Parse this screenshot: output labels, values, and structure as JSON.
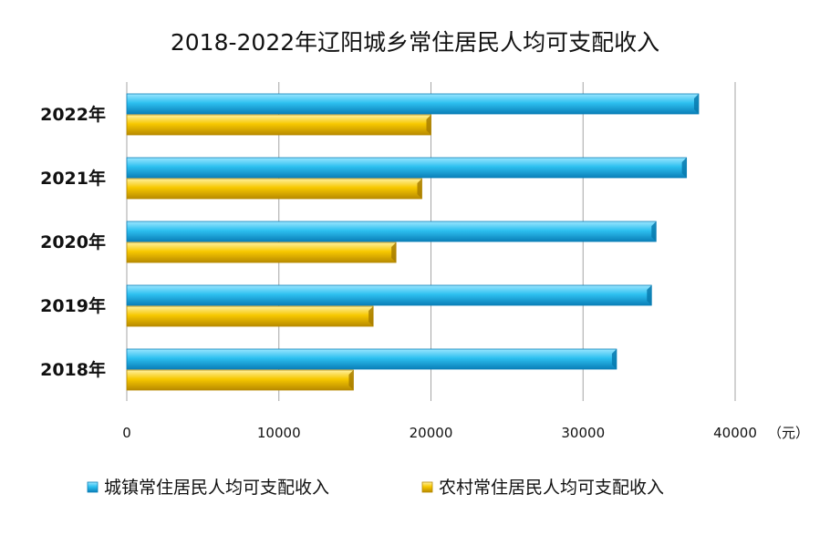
{
  "chart_data": {
    "type": "bar",
    "orientation": "horizontal",
    "title": "2018-2022年辽阳城乡常住居民人均可支配收入",
    "categories": [
      "2022年",
      "2021年",
      "2020年",
      "2019年",
      "2018年"
    ],
    "series": [
      {
        "name": "城镇常住居民人均可支配收入",
        "color": "#1EB4E6",
        "values": [
          37600,
          36800,
          34800,
          34500,
          32200
        ]
      },
      {
        "name": "农村常住居民人均可支配收入",
        "color": "#F5C400",
        "values": [
          20000,
          19400,
          17700,
          16200,
          14900
        ]
      }
    ],
    "x_ticks": [
      "0",
      "10000",
      "20000",
      "30000",
      "40000"
    ],
    "xlim": [
      0,
      40000
    ],
    "unit": "（元）",
    "grid": true,
    "legend_position": "bottom"
  }
}
